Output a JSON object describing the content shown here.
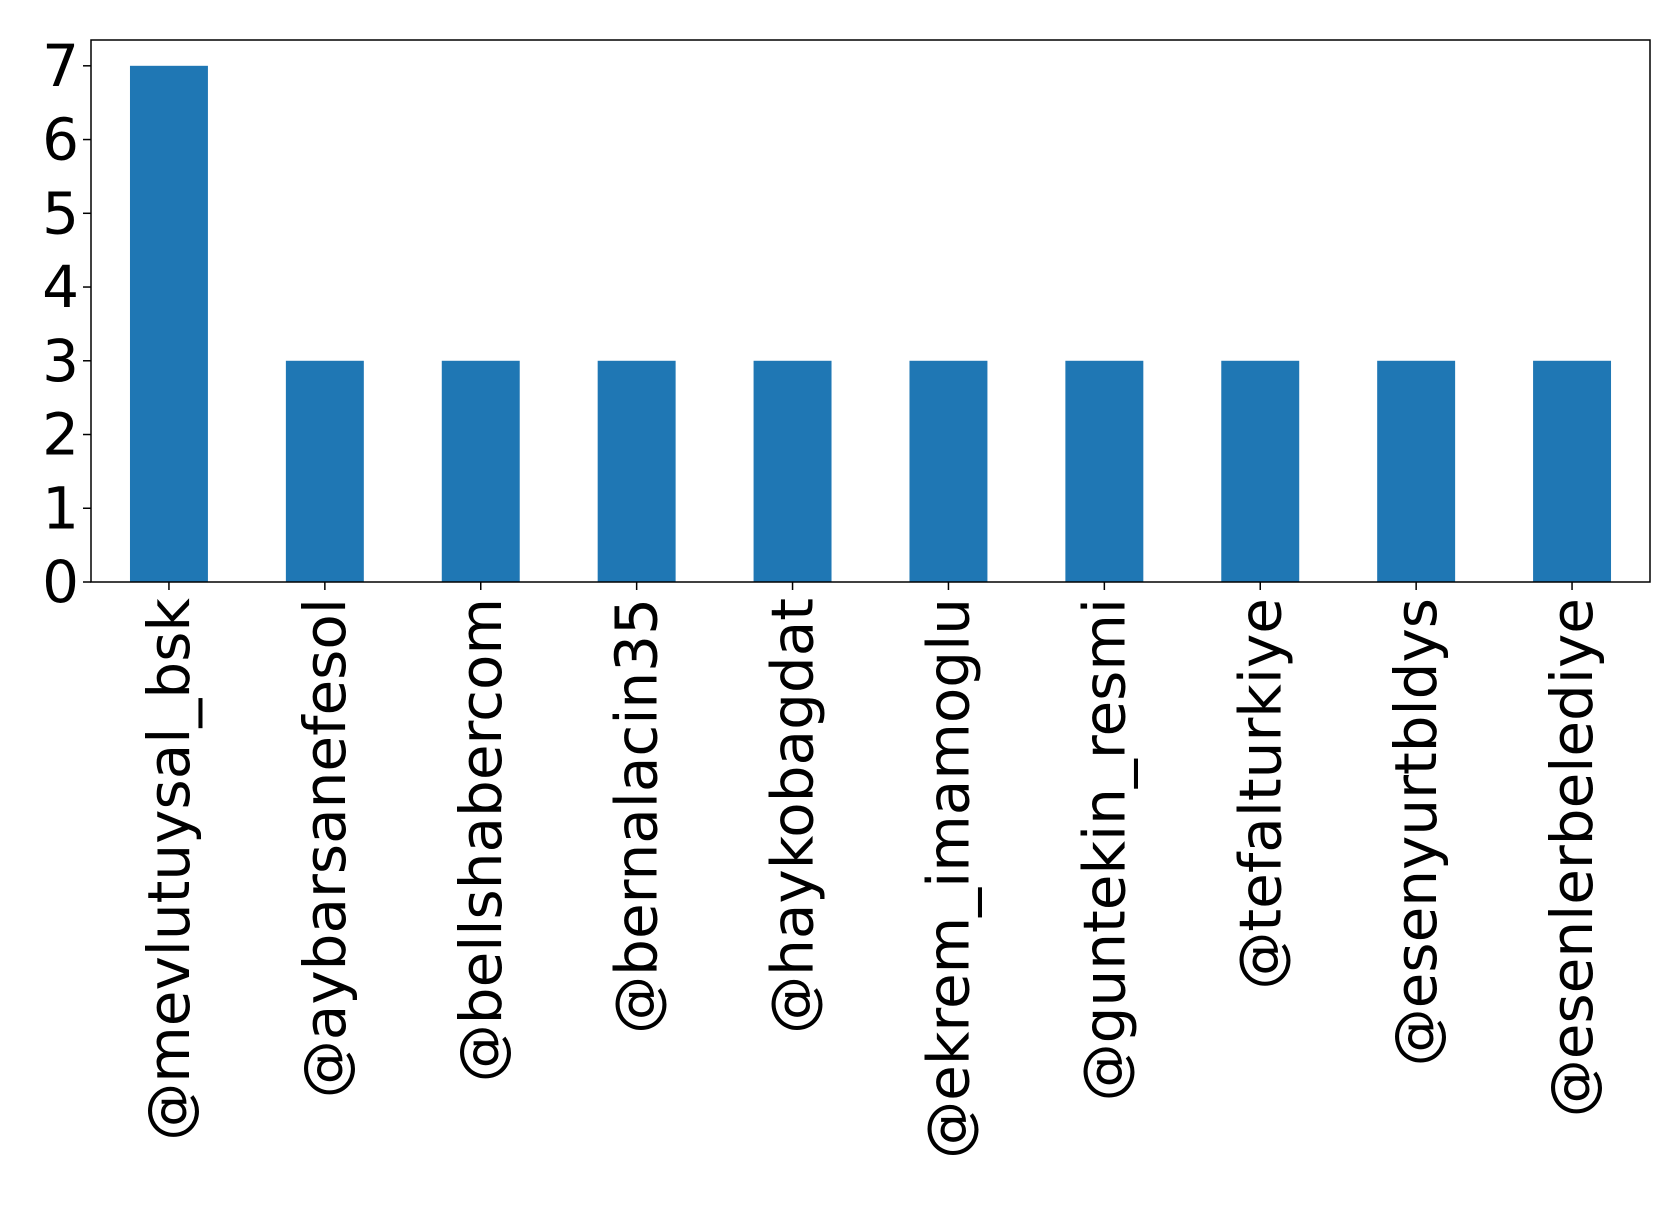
{
  "chart_data": {
    "type": "bar",
    "categories": [
      "@mevlutuysal_bsk",
      "@aybarsanefesol",
      "@bellshabercom",
      "@bernalacin35",
      "@haykobagdat",
      "@ekrem_imamoglu",
      "@guntekin_resmi",
      "@tefalturkiye",
      "@esenyurtbldys",
      "@esenlerbelediye"
    ],
    "values": [
      7,
      3,
      3,
      3,
      3,
      3,
      3,
      3,
      3,
      3
    ],
    "yticks": [
      0,
      1,
      2,
      3,
      4,
      5,
      6,
      7
    ],
    "ylim": [
      0,
      7.35
    ],
    "title": "",
    "xlabel": "",
    "ylabel": "",
    "bar_color": "#1f77b4",
    "grid": false,
    "legend": false
  }
}
